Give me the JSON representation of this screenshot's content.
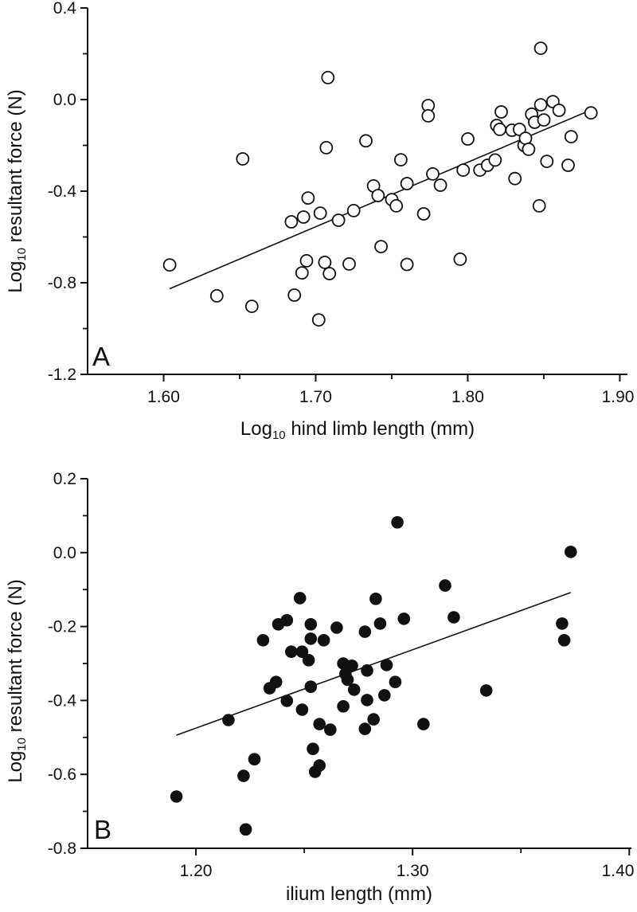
{
  "figure": {
    "background": "#ffffff",
    "ink_color": "#111111",
    "panel_a_letter": "A",
    "panel_b_letter": "B"
  },
  "chart_data": [
    {
      "panel_label": "A",
      "type": "scatter",
      "marker": "open-circle",
      "xlabel": {
        "main": "Log",
        "sub": "10",
        "tail": " hind limb length (mm)"
      },
      "ylabel": {
        "main": "Log",
        "sub": "10",
        "tail": " resultant force (N)"
      },
      "xlim": [
        1.55,
        1.905
      ],
      "ylim": [
        -1.2,
        0.4
      ],
      "x_ticks": {
        "major": [
          1.6,
          1.7,
          1.8,
          1.9
        ],
        "labels": [
          "1.60",
          "1.70",
          "1.80",
          "1.90"
        ],
        "minor": [
          1.65,
          1.75,
          1.85
        ]
      },
      "y_ticks": {
        "major": [
          0.4,
          0.0,
          -0.4,
          -0.8,
          -1.2
        ],
        "labels": [
          "0.4",
          "0.0",
          "-0.4",
          "-0.8",
          "-1.2"
        ],
        "minor": [
          0.2,
          -0.2,
          -0.6,
          -1.0
        ]
      },
      "grid": false,
      "legend": "none",
      "regression_line": {
        "x1": 1.604,
        "y1": -0.826,
        "x2": 1.878,
        "y2": -0.054
      },
      "points": [
        [
          1.604,
          -0.722
        ],
        [
          1.635,
          -0.857
        ],
        [
          1.652,
          -0.259
        ],
        [
          1.658,
          -0.903
        ],
        [
          1.684,
          -0.534
        ],
        [
          1.686,
          -0.854
        ],
        [
          1.691,
          -0.757
        ],
        [
          1.692,
          -0.513
        ],
        [
          1.694,
          -0.704
        ],
        [
          1.695,
          -0.43
        ],
        [
          1.702,
          -0.962
        ],
        [
          1.703,
          -0.496
        ],
        [
          1.706,
          -0.711
        ],
        [
          1.707,
          -0.21
        ],
        [
          1.708,
          0.096
        ],
        [
          1.709,
          -0.76
        ],
        [
          1.715,
          -0.527
        ],
        [
          1.722,
          -0.718
        ],
        [
          1.725,
          -0.485
        ],
        [
          1.733,
          -0.18
        ],
        [
          1.738,
          -0.377
        ],
        [
          1.741,
          -0.419
        ],
        [
          1.743,
          -0.642
        ],
        [
          1.75,
          -0.437
        ],
        [
          1.753,
          -0.464
        ],
        [
          1.756,
          -0.263
        ],
        [
          1.76,
          -0.367
        ],
        [
          1.76,
          -0.72
        ],
        [
          1.771,
          -0.499
        ],
        [
          1.774,
          -0.026
        ],
        [
          1.774,
          -0.071
        ],
        [
          1.777,
          -0.325
        ],
        [
          1.782,
          -0.374
        ],
        [
          1.795,
          -0.697
        ],
        [
          1.797,
          -0.308
        ],
        [
          1.8,
          -0.172
        ],
        [
          1.808,
          -0.308
        ],
        [
          1.813,
          -0.287
        ],
        [
          1.818,
          -0.264
        ],
        [
          1.819,
          -0.113
        ],
        [
          1.821,
          -0.13
        ],
        [
          1.822,
          -0.054
        ],
        [
          1.829,
          -0.134
        ],
        [
          1.831,
          -0.345
        ],
        [
          1.834,
          -0.13
        ],
        [
          1.837,
          -0.2
        ],
        [
          1.838,
          -0.169
        ],
        [
          1.84,
          -0.217
        ],
        [
          1.842,
          -0.064
        ],
        [
          1.844,
          -0.099
        ],
        [
          1.847,
          -0.464
        ],
        [
          1.848,
          0.224
        ],
        [
          1.848,
          -0.023
        ],
        [
          1.85,
          -0.089
        ],
        [
          1.852,
          -0.27
        ],
        [
          1.856,
          -0.009
        ],
        [
          1.86,
          -0.047
        ],
        [
          1.866,
          -0.287
        ],
        [
          1.868,
          -0.162
        ],
        [
          1.881,
          -0.058
        ]
      ]
    },
    {
      "panel_label": "B",
      "type": "scatter",
      "marker": "filled-circle",
      "xlabel": {
        "main": "",
        "sub": "",
        "tail": "ilium length (mm)"
      },
      "ylabel": {
        "main": "Log",
        "sub": "10",
        "tail": " resultant force (N)"
      },
      "xlim": [
        1.15,
        1.401
      ],
      "ylim": [
        -0.8,
        0.2
      ],
      "x_ticks": {
        "major": [
          1.2,
          1.3,
          1.4
        ],
        "labels": [
          "1.20",
          "1.30",
          "1.40"
        ],
        "minor": [
          1.25,
          1.35
        ]
      },
      "y_ticks": {
        "major": [
          0.2,
          0.0,
          -0.2,
          -0.4,
          -0.6,
          -0.8
        ],
        "labels": [
          "0.2",
          "0.0",
          "-0.2",
          "-0.4",
          "-0.6",
          "-0.8"
        ],
        "minor": [
          0.1,
          -0.1,
          -0.3,
          -0.5,
          -0.7
        ]
      },
      "grid": false,
      "legend": "none",
      "regression_line": {
        "x1": 1.191,
        "y1": -0.494,
        "x2": 1.373,
        "y2": -0.108
      },
      "points": [
        [
          1.191,
          -0.66
        ],
        [
          1.215,
          -0.453
        ],
        [
          1.222,
          -0.604
        ],
        [
          1.223,
          -0.749
        ],
        [
          1.227,
          -0.559
        ],
        [
          1.231,
          -0.237
        ],
        [
          1.234,
          -0.367
        ],
        [
          1.237,
          -0.35
        ],
        [
          1.238,
          -0.194
        ],
        [
          1.242,
          -0.183
        ],
        [
          1.242,
          -0.401
        ],
        [
          1.244,
          -0.268
        ],
        [
          1.249,
          -0.268
        ],
        [
          1.248,
          -0.123
        ],
        [
          1.249,
          -0.425
        ],
        [
          1.252,
          -0.291
        ],
        [
          1.253,
          -0.194
        ],
        [
          1.253,
          -0.233
        ],
        [
          1.253,
          -0.363
        ],
        [
          1.254,
          -0.531
        ],
        [
          1.255,
          -0.593
        ],
        [
          1.257,
          -0.576
        ],
        [
          1.257,
          -0.464
        ],
        [
          1.259,
          -0.237
        ],
        [
          1.262,
          -0.479
        ],
        [
          1.265,
          -0.203
        ],
        [
          1.268,
          -0.3
        ],
        [
          1.272,
          -0.306
        ],
        [
          1.269,
          -0.328
        ],
        [
          1.27,
          -0.344
        ],
        [
          1.268,
          -0.416
        ],
        [
          1.273,
          -0.371
        ],
        [
          1.278,
          -0.214
        ],
        [
          1.278,
          -0.477
        ],
        [
          1.279,
          -0.319
        ],
        [
          1.279,
          -0.399
        ],
        [
          1.282,
          -0.451
        ],
        [
          1.283,
          -0.125
        ],
        [
          1.285,
          -0.192
        ],
        [
          1.287,
          -0.386
        ],
        [
          1.288,
          -0.304
        ],
        [
          1.292,
          -0.35
        ],
        [
          1.293,
          0.082
        ],
        [
          1.296,
          -0.179
        ],
        [
          1.305,
          -0.464
        ],
        [
          1.315,
          -0.089
        ],
        [
          1.319,
          -0.175
        ],
        [
          1.334,
          -0.373
        ],
        [
          1.369,
          -0.192
        ],
        [
          1.37,
          -0.237
        ],
        [
          1.373,
          0.002
        ]
      ]
    }
  ]
}
